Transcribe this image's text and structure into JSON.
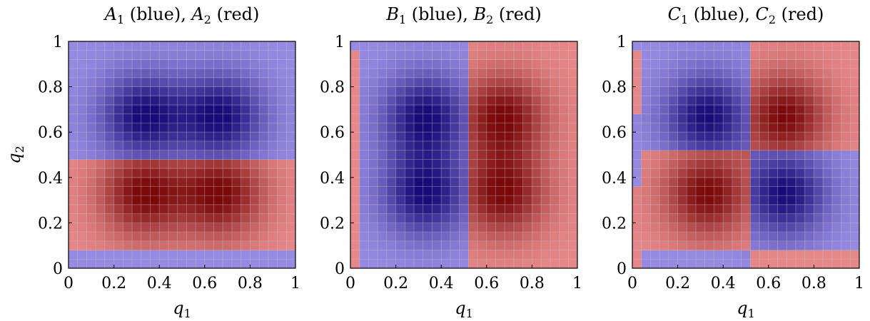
{
  "chart_data": [
    {
      "type": "heatmap",
      "title_parts": [
        "A",
        "1",
        " (blue), ",
        "A",
        "2",
        " (red)"
      ],
      "xlabel": "q",
      "xlabel_sub": "1",
      "ylabel": "q",
      "ylabel_sub": "2",
      "xlim": [
        0,
        1
      ],
      "ylim": [
        0,
        1
      ],
      "xticks": [
        "0",
        "0.2",
        "0.4",
        "0.6",
        "0.8",
        "1"
      ],
      "yticks": [
        "0",
        "0.2",
        "0.4",
        "0.6",
        "0.8",
        "1"
      ],
      "grid": true,
      "colors": {
        "blue": "#1a0a78",
        "red": "#7a0808",
        "pale_blue": "#a89cf0",
        "pale_red": "#f5999b"
      },
      "dominant_regions": [
        {
          "series": "red",
          "x": [
            0,
            1
          ],
          "y": [
            0.06,
            0.5
          ]
        },
        {
          "series": "blue",
          "x": [
            0,
            1
          ],
          "y": [
            0,
            0.06
          ]
        },
        {
          "series": "blue",
          "x": [
            0,
            1
          ],
          "y": [
            0.5,
            1
          ]
        }
      ],
      "peaks": [
        {
          "series": "blue",
          "x": 0.33,
          "y": 0.67
        },
        {
          "series": "blue",
          "x": 0.67,
          "y": 0.67
        },
        {
          "series": "red",
          "x": 0.33,
          "y": 0.33
        },
        {
          "series": "red",
          "x": 0.67,
          "y": 0.33
        }
      ]
    },
    {
      "type": "heatmap",
      "title_parts": [
        "B",
        "1",
        " (blue), ",
        "B",
        "2",
        " (red)"
      ],
      "xlabel": "q",
      "xlabel_sub": "1",
      "ylabel": "",
      "ylabel_sub": "",
      "xlim": [
        0,
        1
      ],
      "ylim": [
        0,
        1
      ],
      "xticks": [
        "0",
        "0.2",
        "0.4",
        "0.6",
        "0.8",
        "1"
      ],
      "yticks": [
        "0",
        "0.2",
        "0.4",
        "0.6",
        "0.8",
        "1"
      ],
      "grid": true,
      "colors": {
        "blue": "#1a0a78",
        "red": "#7a0808",
        "pale_blue": "#a89cf0",
        "pale_red": "#f5999b"
      },
      "dominant_regions": [
        {
          "series": "red",
          "x": [
            0,
            0.03
          ],
          "y": [
            0,
            0.95
          ]
        },
        {
          "series": "blue",
          "x": [
            0.03,
            0.53
          ],
          "y": [
            0,
            1
          ]
        },
        {
          "series": "red",
          "x": [
            0.53,
            1
          ],
          "y": [
            0,
            1
          ]
        }
      ],
      "peaks": [
        {
          "series": "blue",
          "x": 0.33,
          "y": 0.67
        },
        {
          "series": "blue",
          "x": 0.33,
          "y": 0.33
        },
        {
          "series": "red",
          "x": 0.67,
          "y": 0.67
        },
        {
          "series": "red",
          "x": 0.67,
          "y": 0.33
        }
      ]
    },
    {
      "type": "heatmap",
      "title_parts": [
        "C",
        "1",
        " (blue), ",
        "C",
        "2",
        " (red)"
      ],
      "xlabel": "q",
      "xlabel_sub": "1",
      "ylabel": "",
      "ylabel_sub": "",
      "xlim": [
        0,
        1
      ],
      "ylim": [
        0,
        1
      ],
      "xticks": [
        "0",
        "0.2",
        "0.4",
        "0.6",
        "0.8",
        "1"
      ],
      "yticks": [
        "0",
        "0.2",
        "0.4",
        "0.6",
        "0.8",
        "1"
      ],
      "grid": true,
      "colors": {
        "blue": "#1a0a78",
        "red": "#7a0808",
        "pale_blue": "#a89cf0",
        "pale_red": "#f5999b"
      },
      "dominant_regions": [
        {
          "series": "blue",
          "x": [
            0,
            0.53
          ],
          "y": [
            0.5,
            1
          ]
        },
        {
          "series": "red",
          "x": [
            0,
            0.03
          ],
          "y": [
            0.7,
            0.95
          ]
        },
        {
          "series": "red",
          "x": [
            0.53,
            1
          ],
          "y": [
            0.5,
            1
          ]
        },
        {
          "series": "red",
          "x": [
            0,
            0.53
          ],
          "y": [
            0.06,
            0.5
          ]
        },
        {
          "series": "blue",
          "x": [
            0,
            0.03
          ],
          "y": [
            0.37,
            0.5
          ]
        },
        {
          "series": "blue",
          "x": [
            0,
            0.53
          ],
          "y": [
            0,
            0.06
          ]
        },
        {
          "series": "red",
          "x": [
            0,
            0.03
          ],
          "y": [
            0,
            0.37
          ]
        },
        {
          "series": "blue",
          "x": [
            0.53,
            1
          ],
          "y": [
            0.06,
            0.5
          ]
        },
        {
          "series": "red",
          "x": [
            0.53,
            1
          ],
          "y": [
            0,
            0.06
          ]
        }
      ],
      "peaks": [
        {
          "series": "blue",
          "x": 0.33,
          "y": 0.67
        },
        {
          "series": "red",
          "x": 0.67,
          "y": 0.67
        },
        {
          "series": "red",
          "x": 0.33,
          "y": 0.33
        },
        {
          "series": "blue",
          "x": 0.67,
          "y": 0.33
        }
      ]
    }
  ]
}
